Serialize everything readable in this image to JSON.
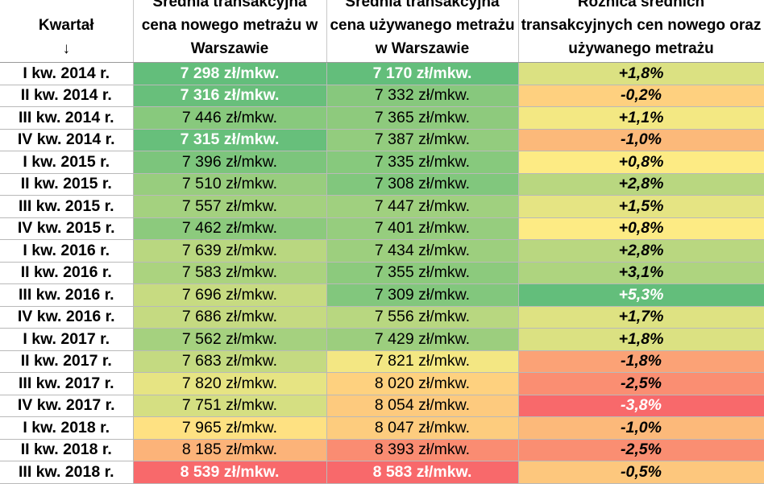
{
  "chart_data": {
    "type": "table",
    "columns": [
      "Kwartał",
      "Średnia transakcyjna cena nowego metrażu w Warszawie",
      "Średnia transakcyjna cena używanego metrażu w Warszawie",
      "Różnica średnich transakcyjnych cen nowego oraz używanego metrażu"
    ],
    "header_arrow": "↓",
    "unit": "zł/mkw.",
    "rows": [
      {
        "quarter": "I kw. 2014 r.",
        "new": "7 298 zł/mkw.",
        "used": "7 170 zł/mkw.",
        "diff": "+1,8%"
      },
      {
        "quarter": "II kw. 2014 r.",
        "new": "7 316 zł/mkw.",
        "used": "7 332 zł/mkw.",
        "diff": "-0,2%"
      },
      {
        "quarter": "III kw. 2014 r.",
        "new": "7 446 zł/mkw.",
        "used": "7 365 zł/mkw.",
        "diff": "+1,1%"
      },
      {
        "quarter": "IV kw. 2014 r.",
        "new": "7 315 zł/mkw.",
        "used": "7 387 zł/mkw.",
        "diff": "-1,0%"
      },
      {
        "quarter": "I kw. 2015 r.",
        "new": "7 396 zł/mkw.",
        "used": "7 335 zł/mkw.",
        "diff": "+0,8%"
      },
      {
        "quarter": "II kw. 2015 r.",
        "new": "7 510 zł/mkw.",
        "used": "7 308 zł/mkw.",
        "diff": "+2,8%"
      },
      {
        "quarter": "III kw. 2015 r.",
        "new": "7 557 zł/mkw.",
        "used": "7 447 zł/mkw.",
        "diff": "+1,5%"
      },
      {
        "quarter": "IV kw. 2015 r.",
        "new": "7 462 zł/mkw.",
        "used": "7 401 zł/mkw.",
        "diff": "+0,8%"
      },
      {
        "quarter": "I kw. 2016 r.",
        "new": "7 639 zł/mkw.",
        "used": "7 434 zł/mkw.",
        "diff": "+2,8%"
      },
      {
        "quarter": "II kw. 2016 r.",
        "new": "7 583 zł/mkw.",
        "used": "7 355 zł/mkw.",
        "diff": "+3,1%"
      },
      {
        "quarter": "III kw. 2016 r.",
        "new": "7 696 zł/mkw.",
        "used": "7 309 zł/mkw.",
        "diff": "+5,3%"
      },
      {
        "quarter": "IV kw. 2016 r.",
        "new": "7 686 zł/mkw.",
        "used": "7 556 zł/mkw.",
        "diff": "+1,7%"
      },
      {
        "quarter": "I kw. 2017 r.",
        "new": "7 562 zł/mkw.",
        "used": "7 429 zł/mkw.",
        "diff": "+1,8%"
      },
      {
        "quarter": "II kw. 2017 r.",
        "new": "7 683 zł/mkw.",
        "used": "7 821 zł/mkw.",
        "diff": "-1,8%"
      },
      {
        "quarter": "III kw. 2017 r.",
        "new": "7 820 zł/mkw.",
        "used": "8 020 zł/mkw.",
        "diff": "-2,5%"
      },
      {
        "quarter": "IV kw. 2017 r.",
        "new": "7 751 zł/mkw.",
        "used": "8 054 zł/mkw.",
        "diff": "-3,8%"
      },
      {
        "quarter": "I kw. 2018 r.",
        "new": "7 965 zł/mkw.",
        "used": "8 047 zł/mkw.",
        "diff": "-1,0%"
      },
      {
        "quarter": "II kw. 2018 r.",
        "new": "8 185 zł/mkw.",
        "used": "8 393 zł/mkw.",
        "diff": "-2,5%"
      },
      {
        "quarter": "III kw. 2018 r.",
        "new": "8 539 zł/mkw.",
        "used": "8 583 zł/mkw.",
        "diff": "-0,5%"
      }
    ],
    "color_scale": {
      "low": "#63be7b",
      "mid": "#ffeb84",
      "high": "#f8696b"
    }
  }
}
